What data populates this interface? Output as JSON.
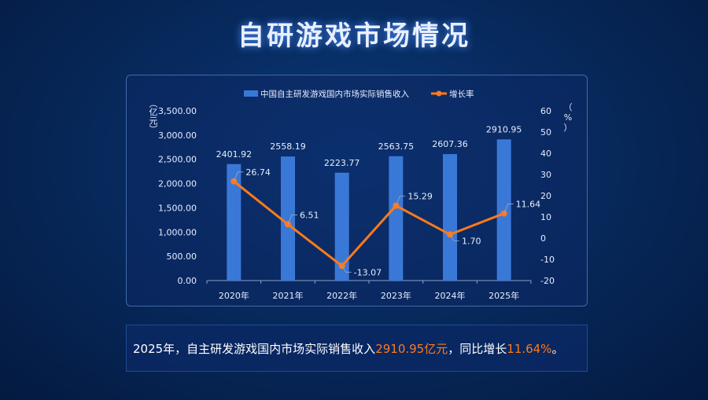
{
  "page_title": "自研游戏市场情况",
  "summary": {
    "prefix": "2025年，自主研发游戏国内市场实际销售收入",
    "value": "2910.95亿元",
    "middle": "，同比增长",
    "rate": "11.64%",
    "suffix": "。"
  },
  "chart_data": {
    "type": "bar+line",
    "categories": [
      "2020年",
      "2021年",
      "2022年",
      "2023年",
      "2024年",
      "2025年"
    ],
    "series": [
      {
        "name": "中国自主研发游戏国内市场实际销售收入",
        "type": "bar",
        "axis": "left",
        "values": [
          2401.92,
          2558.19,
          2223.77,
          2563.75,
          2607.36,
          2910.95
        ],
        "labels": [
          "2401.92",
          "2558.19",
          "2223.77",
          "2563.75",
          "2607.36",
          "2910.95"
        ],
        "color": "#3a78d8"
      },
      {
        "name": "增长率",
        "type": "line",
        "axis": "right",
        "values": [
          26.74,
          6.51,
          -13.07,
          15.29,
          1.7,
          11.64
        ],
        "labels": [
          "26.74",
          "6.51",
          "-13.07",
          "15.29",
          "1.70",
          "11.64"
        ],
        "color": "#ff7a1a"
      }
    ],
    "left_axis": {
      "label": "（亿元）",
      "ylim": [
        0,
        3500
      ],
      "ticks": [
        "0.00",
        "500.00",
        "1,000.00",
        "1,500.00",
        "2,000.00",
        "2,500.00",
        "3,000.00",
        "3,500.00"
      ]
    },
    "right_axis": {
      "label": "（%）",
      "ylim": [
        -20,
        60
      ],
      "ticks": [
        "-20",
        "-10",
        "0",
        "10",
        "20",
        "30",
        "40",
        "50",
        "60"
      ]
    },
    "legend": "top-center",
    "grid": false
  }
}
